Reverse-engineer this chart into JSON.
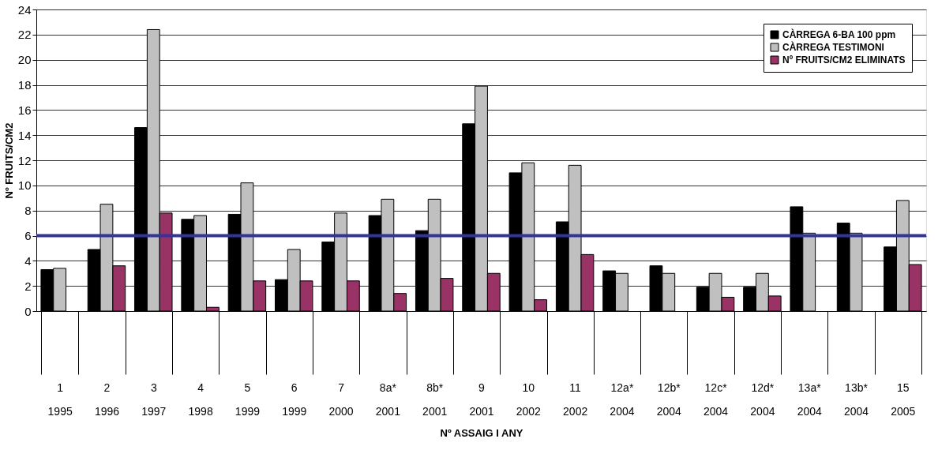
{
  "chart_data": {
    "type": "bar",
    "xlabel": "Nº ASSAIG I ANY",
    "ylabel": "Nº FRUITS/CM2",
    "categories": [
      "1\n1995",
      "2\n1996",
      "3\n1997",
      "4\n1998",
      "5\n1999",
      "6\n1999",
      "7\n2000",
      "8a*\n2001",
      "8b*\n2001",
      "9\n2001",
      "10\n2002",
      "11\n2002",
      "12a*\n2004",
      "12b*\n2004",
      "12c*\n2004",
      "12d*\n2004",
      "13a*\n2004",
      "13b*\n2004",
      "15\n2005"
    ],
    "series": [
      {
        "name": "CÀRREGA 6-BA 100 ppm",
        "color": "#000000",
        "values": [
          3.3,
          4.9,
          14.6,
          7.3,
          7.7,
          2.5,
          5.5,
          7.6,
          6.4,
          14.9,
          11.0,
          7.1,
          3.2,
          3.6,
          1.9,
          1.9,
          8.3,
          7.0,
          5.1
        ]
      },
      {
        "name": "CÀRREGA TESTIMONI",
        "color": "#c0c0c0",
        "values": [
          3.4,
          8.5,
          22.4,
          7.6,
          10.2,
          4.9,
          7.8,
          8.9,
          8.9,
          17.9,
          11.8,
          11.6,
          3.0,
          3.0,
          3.0,
          3.0,
          6.2,
          6.2,
          8.8
        ]
      },
      {
        "name": "Nº FRUITS/CM2 ELIMINATS",
        "color": "#993366",
        "values": [
          null,
          3.6,
          7.8,
          0.3,
          2.4,
          2.4,
          2.4,
          1.4,
          2.6,
          3.0,
          0.9,
          4.5,
          null,
          null,
          1.1,
          1.2,
          null,
          null,
          3.7
        ]
      }
    ],
    "ylim": [
      0,
      24
    ],
    "yticks": [
      0,
      2,
      4,
      6,
      8,
      10,
      12,
      14,
      16,
      18,
      20,
      22,
      24
    ],
    "ref_lines": [
      {
        "axis": "y",
        "value": 6,
        "color": "#333399"
      }
    ],
    "grid": "y",
    "legend": "top right"
  }
}
